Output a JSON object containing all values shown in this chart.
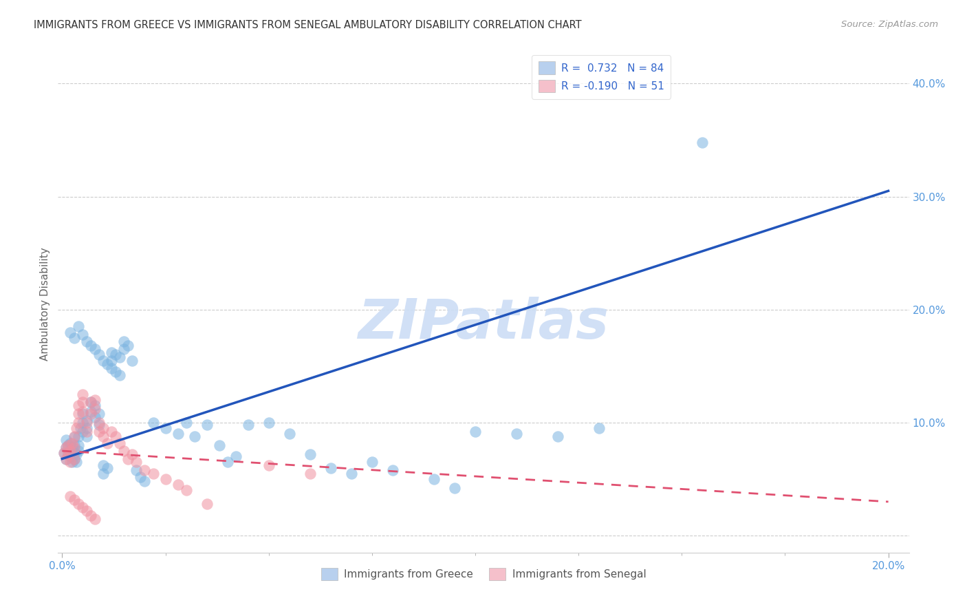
{
  "title": "IMMIGRANTS FROM GREECE VS IMMIGRANTS FROM SENEGAL AMBULATORY DISABILITY CORRELATION CHART",
  "source": "Source: ZipAtlas.com",
  "ylabel": "Ambulatory Disability",
  "xlim_min": -0.001,
  "xlim_max": 0.205,
  "ylim_min": -0.015,
  "ylim_max": 0.425,
  "xticks": [
    0.0,
    0.2
  ],
  "xtick_labels": [
    "0.0%",
    "20.0%"
  ],
  "yticks": [
    0.0,
    0.1,
    0.2,
    0.3,
    0.4
  ],
  "ytick_labels": [
    "",
    "10.0%",
    "20.0%",
    "30.0%",
    "40.0%"
  ],
  "ytick_minor": [
    0.05,
    0.15,
    0.25,
    0.35
  ],
  "greece_color": "#7ab3e0",
  "senegal_color": "#f090a0",
  "greece_line_color": "#2255bb",
  "senegal_line_color": "#e05070",
  "watermark": "ZIPatlas",
  "watermark_color": "#ccddf5",
  "background_color": "#ffffff",
  "grid_color": "#cccccc",
  "tick_color": "#5599dd",
  "legend_r_color": "#3366cc",
  "greece_line_x0": 0.0,
  "greece_line_y0": 0.068,
  "greece_line_x1": 0.2,
  "greece_line_y1": 0.305,
  "senegal_line_x0": 0.0,
  "senegal_line_y0": 0.075,
  "senegal_line_x1": 0.2,
  "senegal_line_y1": 0.03,
  "greece_scatter_x": [
    0.0005,
    0.001,
    0.001,
    0.001,
    0.0015,
    0.0015,
    0.002,
    0.002,
    0.002,
    0.0025,
    0.0025,
    0.003,
    0.003,
    0.003,
    0.003,
    0.0035,
    0.0035,
    0.004,
    0.004,
    0.004,
    0.0045,
    0.005,
    0.005,
    0.005,
    0.006,
    0.006,
    0.006,
    0.007,
    0.007,
    0.008,
    0.008,
    0.009,
    0.009,
    0.01,
    0.01,
    0.011,
    0.012,
    0.012,
    0.013,
    0.014,
    0.015,
    0.015,
    0.016,
    0.017,
    0.018,
    0.019,
    0.02,
    0.022,
    0.025,
    0.028,
    0.03,
    0.032,
    0.035,
    0.038,
    0.04,
    0.042,
    0.045,
    0.05,
    0.055,
    0.06,
    0.065,
    0.07,
    0.075,
    0.08,
    0.09,
    0.095,
    0.1,
    0.11,
    0.12,
    0.13,
    0.002,
    0.003,
    0.004,
    0.005,
    0.006,
    0.007,
    0.008,
    0.009,
    0.01,
    0.011,
    0.012,
    0.013,
    0.014,
    0.155
  ],
  "greece_scatter_y": [
    0.073,
    0.068,
    0.078,
    0.085,
    0.072,
    0.08,
    0.07,
    0.075,
    0.082,
    0.065,
    0.078,
    0.068,
    0.073,
    0.08,
    0.087,
    0.072,
    0.065,
    0.08,
    0.088,
    0.075,
    0.095,
    0.092,
    0.1,
    0.108,
    0.088,
    0.095,
    0.102,
    0.11,
    0.118,
    0.105,
    0.115,
    0.098,
    0.108,
    0.055,
    0.062,
    0.06,
    0.155,
    0.162,
    0.16,
    0.158,
    0.165,
    0.172,
    0.168,
    0.155,
    0.058,
    0.052,
    0.048,
    0.1,
    0.095,
    0.09,
    0.1,
    0.088,
    0.098,
    0.08,
    0.065,
    0.07,
    0.098,
    0.1,
    0.09,
    0.072,
    0.06,
    0.055,
    0.065,
    0.058,
    0.05,
    0.042,
    0.092,
    0.09,
    0.088,
    0.095,
    0.18,
    0.175,
    0.185,
    0.178,
    0.172,
    0.168,
    0.165,
    0.16,
    0.155,
    0.152,
    0.148,
    0.145,
    0.142,
    0.348
  ],
  "senegal_scatter_x": [
    0.0005,
    0.001,
    0.001,
    0.0015,
    0.0015,
    0.002,
    0.002,
    0.0025,
    0.003,
    0.003,
    0.003,
    0.0035,
    0.004,
    0.004,
    0.004,
    0.005,
    0.005,
    0.005,
    0.006,
    0.006,
    0.007,
    0.007,
    0.008,
    0.008,
    0.009,
    0.009,
    0.01,
    0.01,
    0.011,
    0.012,
    0.013,
    0.014,
    0.015,
    0.016,
    0.017,
    0.018,
    0.02,
    0.022,
    0.025,
    0.028,
    0.03,
    0.002,
    0.003,
    0.004,
    0.005,
    0.006,
    0.007,
    0.008,
    0.05,
    0.06,
    0.035
  ],
  "senegal_scatter_y": [
    0.073,
    0.068,
    0.078,
    0.072,
    0.08,
    0.065,
    0.075,
    0.082,
    0.068,
    0.078,
    0.088,
    0.095,
    0.1,
    0.108,
    0.115,
    0.11,
    0.118,
    0.125,
    0.092,
    0.1,
    0.108,
    0.118,
    0.112,
    0.12,
    0.092,
    0.1,
    0.088,
    0.095,
    0.082,
    0.092,
    0.088,
    0.082,
    0.075,
    0.068,
    0.072,
    0.065,
    0.058,
    0.055,
    0.05,
    0.045,
    0.04,
    0.035,
    0.032,
    0.028,
    0.025,
    0.022,
    0.018,
    0.015,
    0.062,
    0.055,
    0.028
  ]
}
